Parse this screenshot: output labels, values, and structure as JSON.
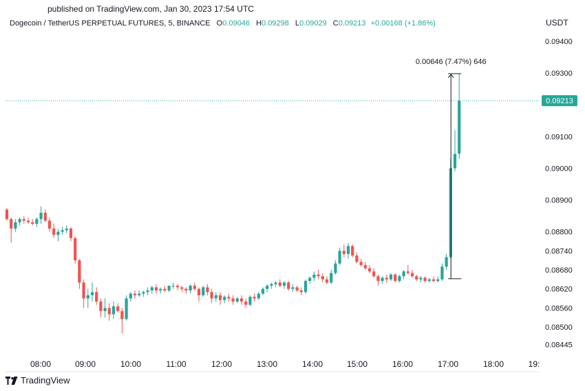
{
  "published": "published on TradingView.com, Jan 30, 2023 17:54 UTC",
  "legend": {
    "symbol": "Dogecoin / TetherUS PERPETUAL FUTURES, 5, BINANCE",
    "o_label": "O",
    "o": "0.09046",
    "h_label": "H",
    "h": "0.09298",
    "l_label": "L",
    "l": "0.09029",
    "c_label": "C",
    "c": "0.09213",
    "change": "+0.00168 (+1.86%)"
  },
  "unit": "USDT",
  "footer": {
    "brand": "TradingView",
    "logo_icon": "tradingview-logo-icon"
  },
  "colors": {
    "up": "#26a69a",
    "down": "#ef5350",
    "price_line": "#26a69a",
    "measure": "#131722"
  },
  "chart_data": {
    "type": "candlestick",
    "x_ticks": [
      "08:00",
      "09:00",
      "10:00",
      "11:00",
      "12:00",
      "13:00",
      "14:00",
      "15:00",
      "16:00",
      "17:00",
      "18:00",
      "19:"
    ],
    "y_ticks": [
      "0.09400",
      "0.09300",
      "0.09213",
      "0.09100",
      "0.09000",
      "0.08900",
      "0.08800",
      "0.08740",
      "0.08680",
      "0.08620",
      "0.08560",
      "0.08500",
      "0.08445"
    ],
    "y_tick_values": [
      0.094,
      0.093,
      0.09213,
      0.091,
      0.09,
      0.089,
      0.088,
      0.0874,
      0.0868,
      0.0862,
      0.0856,
      0.085,
      0.08445
    ],
    "current_price": "0.09213",
    "current_price_value": 0.09213,
    "measure": {
      "label": "0.00646 (7.47%) 646",
      "from": 0.08652,
      "to": 0.09298
    },
    "candles": [
      [
        0.0887,
        0.08875,
        0.08835,
        0.0884
      ],
      [
        0.0884,
        0.08845,
        0.08765,
        0.0881
      ],
      [
        0.0881,
        0.0884,
        0.088,
        0.0883
      ],
      [
        0.0883,
        0.08845,
        0.0882,
        0.0884
      ],
      [
        0.0884,
        0.0885,
        0.08825,
        0.08835
      ],
      [
        0.08835,
        0.08845,
        0.08825,
        0.0883
      ],
      [
        0.0883,
        0.0884,
        0.0882,
        0.08825
      ],
      [
        0.08825,
        0.08845,
        0.08815,
        0.0884
      ],
      [
        0.0884,
        0.0888,
        0.08825,
        0.0886
      ],
      [
        0.0886,
        0.0887,
        0.0883,
        0.08835
      ],
      [
        0.08835,
        0.08845,
        0.088,
        0.0881
      ],
      [
        0.0881,
        0.08825,
        0.0878,
        0.0879
      ],
      [
        0.0879,
        0.0881,
        0.0877,
        0.088
      ],
      [
        0.088,
        0.08815,
        0.0879,
        0.08805
      ],
      [
        0.08805,
        0.0882,
        0.08795,
        0.0881
      ],
      [
        0.0881,
        0.08815,
        0.0877,
        0.0878
      ],
      [
        0.0878,
        0.08785,
        0.087,
        0.0871
      ],
      [
        0.0871,
        0.08715,
        0.0862,
        0.0864
      ],
      [
        0.0864,
        0.0865,
        0.0856,
        0.0859
      ],
      [
        0.0859,
        0.0862,
        0.0856,
        0.086
      ],
      [
        0.086,
        0.0864,
        0.0858,
        0.0861
      ],
      [
        0.0861,
        0.08625,
        0.0857,
        0.0858
      ],
      [
        0.0858,
        0.0859,
        0.0853,
        0.0855
      ],
      [
        0.0855,
        0.0859,
        0.0853,
        0.0856
      ],
      [
        0.0856,
        0.08575,
        0.0852,
        0.0854
      ],
      [
        0.0854,
        0.0858,
        0.08525,
        0.08565
      ],
      [
        0.08565,
        0.08575,
        0.08545,
        0.0855
      ],
      [
        0.0855,
        0.0856,
        0.0848,
        0.08525
      ],
      [
        0.08525,
        0.086,
        0.0852,
        0.0859
      ],
      [
        0.0859,
        0.0861,
        0.0858,
        0.08605
      ],
      [
        0.08605,
        0.08615,
        0.0859,
        0.086
      ],
      [
        0.086,
        0.08615,
        0.08595,
        0.08605
      ],
      [
        0.08605,
        0.08615,
        0.08595,
        0.0861
      ],
      [
        0.0861,
        0.08625,
        0.086,
        0.08615
      ],
      [
        0.08615,
        0.0863,
        0.08605,
        0.08625
      ],
      [
        0.08625,
        0.08635,
        0.08605,
        0.08615
      ],
      [
        0.08615,
        0.08625,
        0.08605,
        0.0862
      ],
      [
        0.0862,
        0.0863,
        0.0861,
        0.08615
      ],
      [
        0.08615,
        0.0863,
        0.0861,
        0.0863
      ],
      [
        0.0863,
        0.0864,
        0.0862,
        0.0863
      ],
      [
        0.0863,
        0.08635,
        0.08615,
        0.08625
      ],
      [
        0.08625,
        0.0863,
        0.0861,
        0.0862
      ],
      [
        0.0862,
        0.08625,
        0.08605,
        0.08615
      ],
      [
        0.08615,
        0.08635,
        0.08605,
        0.0863
      ],
      [
        0.0863,
        0.0864,
        0.08615,
        0.0862
      ],
      [
        0.0862,
        0.08625,
        0.0858,
        0.086
      ],
      [
        0.086,
        0.0863,
        0.08595,
        0.08625
      ],
      [
        0.08625,
        0.08635,
        0.086,
        0.0861
      ],
      [
        0.0861,
        0.0862,
        0.08575,
        0.0859
      ],
      [
        0.0859,
        0.0861,
        0.0858,
        0.086
      ],
      [
        0.086,
        0.0861,
        0.0857,
        0.08585
      ],
      [
        0.08585,
        0.086,
        0.08575,
        0.08595
      ],
      [
        0.08595,
        0.08605,
        0.0858,
        0.0859
      ],
      [
        0.0859,
        0.086,
        0.0857,
        0.0858
      ],
      [
        0.0858,
        0.08595,
        0.08575,
        0.0859
      ],
      [
        0.0859,
        0.086,
        0.0857,
        0.0858
      ],
      [
        0.0858,
        0.0859,
        0.0856,
        0.0857
      ],
      [
        0.0857,
        0.086,
        0.08565,
        0.08595
      ],
      [
        0.08595,
        0.08605,
        0.0858,
        0.0859
      ],
      [
        0.0859,
        0.0861,
        0.08585,
        0.08605
      ],
      [
        0.08605,
        0.08625,
        0.086,
        0.0862
      ],
      [
        0.0862,
        0.08635,
        0.0861,
        0.0863
      ],
      [
        0.0863,
        0.0864,
        0.0862,
        0.08635
      ],
      [
        0.08635,
        0.08645,
        0.08625,
        0.0864
      ],
      [
        0.0864,
        0.0865,
        0.08625,
        0.0863
      ],
      [
        0.0863,
        0.08645,
        0.0862,
        0.0864
      ],
      [
        0.0864,
        0.08645,
        0.08615,
        0.0862
      ],
      [
        0.0862,
        0.08635,
        0.0861,
        0.08625
      ],
      [
        0.08625,
        0.0863,
        0.0861,
        0.08615
      ],
      [
        0.08615,
        0.08625,
        0.086,
        0.0861
      ],
      [
        0.0861,
        0.0865,
        0.08605,
        0.08645
      ],
      [
        0.08645,
        0.0866,
        0.08635,
        0.08655
      ],
      [
        0.08655,
        0.08675,
        0.08645,
        0.08665
      ],
      [
        0.08665,
        0.0868,
        0.0865,
        0.0866
      ],
      [
        0.0866,
        0.0867,
        0.0864,
        0.0865
      ],
      [
        0.0865,
        0.0866,
        0.08635,
        0.0864
      ],
      [
        0.0864,
        0.0868,
        0.08635,
        0.0867
      ],
      [
        0.0867,
        0.0871,
        0.08665,
        0.087
      ],
      [
        0.087,
        0.0875,
        0.08695,
        0.0874
      ],
      [
        0.0874,
        0.0876,
        0.0872,
        0.0873
      ],
      [
        0.0873,
        0.08765,
        0.08715,
        0.08755
      ],
      [
        0.08755,
        0.0876,
        0.0872,
        0.08725
      ],
      [
        0.08725,
        0.08735,
        0.087,
        0.08705
      ],
      [
        0.08705,
        0.08715,
        0.0869,
        0.08695
      ],
      [
        0.08695,
        0.08705,
        0.0868,
        0.08685
      ],
      [
        0.08685,
        0.08695,
        0.0867,
        0.08675
      ],
      [
        0.08675,
        0.08685,
        0.08655,
        0.0866
      ],
      [
        0.0866,
        0.08665,
        0.0863,
        0.08645
      ],
      [
        0.08645,
        0.0866,
        0.08635,
        0.08655
      ],
      [
        0.08655,
        0.08665,
        0.0864,
        0.0865
      ],
      [
        0.0865,
        0.0867,
        0.08645,
        0.08665
      ],
      [
        0.08665,
        0.0867,
        0.0864,
        0.08645
      ],
      [
        0.08645,
        0.08665,
        0.0864,
        0.0866
      ],
      [
        0.0866,
        0.0868,
        0.0865,
        0.08675
      ],
      [
        0.08675,
        0.08695,
        0.08665,
        0.0867
      ],
      [
        0.0867,
        0.0868,
        0.08655,
        0.0866
      ],
      [
        0.0866,
        0.08665,
        0.08645,
        0.0865
      ],
      [
        0.0865,
        0.0866,
        0.0864,
        0.08655
      ],
      [
        0.08655,
        0.0866,
        0.0864,
        0.08645
      ],
      [
        0.08645,
        0.08655,
        0.0864,
        0.0865
      ],
      [
        0.0865,
        0.0866,
        0.0864,
        0.08645
      ],
      [
        0.08645,
        0.0866,
        0.0864,
        0.0865
      ],
      [
        0.0865,
        0.087,
        0.08645,
        0.0869
      ],
      [
        0.0869,
        0.0873,
        0.0868,
        0.0872
      ],
      [
        0.0872,
        0.0903,
        0.08715,
        0.09
      ],
      [
        0.09,
        0.0912,
        0.0899,
        0.09045
      ],
      [
        0.09046,
        0.09298,
        0.09029,
        0.09213
      ]
    ]
  }
}
